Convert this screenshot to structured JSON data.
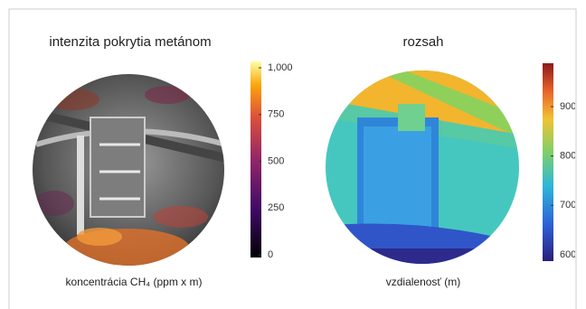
{
  "panels": [
    {
      "title": "intenzita pokrytia metánom",
      "caption": "koncentrácia CH₄ (ppm x m)",
      "colorbar": {
        "ylim": [
          -14,
          1034
        ],
        "yticks": [
          {
            "value": 1000,
            "label": "1,000"
          },
          750,
          500,
          250,
          0
        ]
      }
    },
    {
      "title": "rozsah",
      "caption": "vzdialenosť (m)",
      "colorbar": {
        "ylim": [
          587,
          988
        ],
        "yticks": [
          900,
          800,
          700,
          600
        ]
      }
    }
  ]
}
